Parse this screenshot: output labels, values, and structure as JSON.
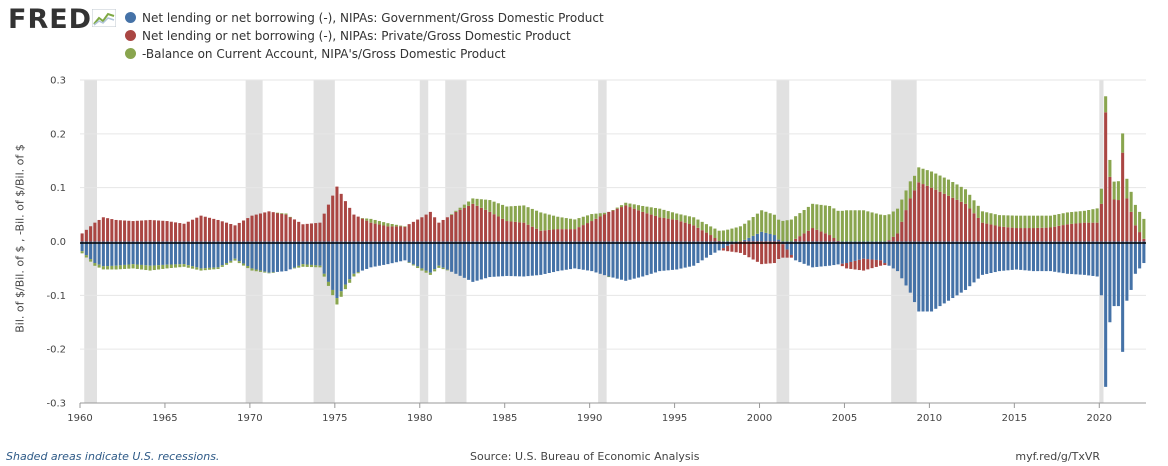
{
  "logo": {
    "text": "FRED"
  },
  "legend": [
    {
      "label": "Net lending or net borrowing (-), NIPAs: Government/Gross Domestic Product",
      "color": "#4572A7"
    },
    {
      "label": "Net lending or net borrowing (-), NIPAs: Private/Gross Domestic Product",
      "color": "#AA4643"
    },
    {
      "label": "-Balance on Current Account, NIPA's/Gross Domestic Product",
      "color": "#89A54E"
    }
  ],
  "footer": {
    "left": "Shaded areas indicate U.S. recessions.",
    "source": "Source: U.S. Bureau of Economic Analysis",
    "url": "myf.red/g/TxVR"
  },
  "chart_data": {
    "type": "bar",
    "stacked": true,
    "frequency": "quarterly",
    "ylabel": "Bil. of $/Bil. of $ , -Bil. of $/Bil. of $",
    "ylim": [
      -0.3,
      0.3
    ],
    "yticks": [
      -0.3,
      -0.2,
      -0.1,
      0.0,
      0.1,
      0.2,
      0.3
    ],
    "ytick_labels": [
      "-0.3",
      "-0.2",
      "-0.1",
      "0.0",
      "0.1",
      "0.2",
      "0.3"
    ],
    "xlim": [
      1960.0,
      2022.75
    ],
    "xticks": [
      1960,
      1965,
      1970,
      1975,
      1980,
      1985,
      1990,
      1995,
      2000,
      2005,
      2010,
      2015,
      2020
    ],
    "xtick_labels": [
      "1960",
      "1965",
      "1970",
      "1975",
      "1980",
      "1985",
      "1990",
      "1995",
      "2000",
      "2005",
      "2010",
      "2015",
      "2020"
    ],
    "recessions": [
      [
        1960.25,
        1961.0
      ],
      [
        1969.75,
        1970.75
      ],
      [
        1973.75,
        1975.0
      ],
      [
        1980.0,
        1980.5
      ],
      [
        1981.5,
        1982.75
      ],
      [
        1990.5,
        1991.0
      ],
      [
        2001.0,
        2001.75
      ],
      [
        2007.75,
        2009.25
      ],
      [
        2020.0,
        2020.25
      ]
    ],
    "series": [
      {
        "name": "Net lending or net borrowing (-), NIPAs: Government/Gross Domestic Product",
        "color": "#4572A7",
        "keyframes": [
          [
            1960.0,
            -0.018
          ],
          [
            1960.75,
            -0.04
          ],
          [
            1961.25,
            -0.046
          ],
          [
            1962.0,
            -0.045
          ],
          [
            1963.0,
            -0.042
          ],
          [
            1964.0,
            -0.045
          ],
          [
            1965.0,
            -0.043
          ],
          [
            1966.0,
            -0.042
          ],
          [
            1967.0,
            -0.05
          ],
          [
            1968.0,
            -0.048
          ],
          [
            1969.0,
            -0.032
          ],
          [
            1970.0,
            -0.05
          ],
          [
            1971.0,
            -0.058
          ],
          [
            1972.0,
            -0.055
          ],
          [
            1973.0,
            -0.042
          ],
          [
            1974.0,
            -0.045
          ],
          [
            1975.0,
            -0.105
          ],
          [
            1975.5,
            -0.08
          ],
          [
            1976.0,
            -0.06
          ],
          [
            1977.0,
            -0.048
          ],
          [
            1978.0,
            -0.042
          ],
          [
            1979.0,
            -0.035
          ],
          [
            1980.0,
            -0.05
          ],
          [
            1980.5,
            -0.058
          ],
          [
            1981.0,
            -0.045
          ],
          [
            1982.0,
            -0.06
          ],
          [
            1983.0,
            -0.075
          ],
          [
            1984.0,
            -0.066
          ],
          [
            1985.0,
            -0.064
          ],
          [
            1986.0,
            -0.065
          ],
          [
            1987.0,
            -0.062
          ],
          [
            1988.0,
            -0.055
          ],
          [
            1989.0,
            -0.05
          ],
          [
            1990.0,
            -0.055
          ],
          [
            1991.0,
            -0.065
          ],
          [
            1992.0,
            -0.073
          ],
          [
            1993.0,
            -0.065
          ],
          [
            1994.0,
            -0.055
          ],
          [
            1995.0,
            -0.052
          ],
          [
            1996.0,
            -0.045
          ],
          [
            1997.0,
            -0.025
          ],
          [
            1998.0,
            -0.008
          ],
          [
            1999.0,
            0.003
          ],
          [
            2000.0,
            0.018
          ],
          [
            2000.75,
            0.012
          ],
          [
            2001.25,
            -0.005
          ],
          [
            2002.0,
            -0.035
          ],
          [
            2003.0,
            -0.048
          ],
          [
            2004.0,
            -0.045
          ],
          [
            2005.0,
            -0.04
          ],
          [
            2006.0,
            -0.032
          ],
          [
            2007.0,
            -0.035
          ],
          [
            2008.0,
            -0.055
          ],
          [
            2008.75,
            -0.095
          ],
          [
            2009.25,
            -0.13
          ],
          [
            2010.0,
            -0.13
          ],
          [
            2011.0,
            -0.11
          ],
          [
            2012.0,
            -0.09
          ],
          [
            2013.0,
            -0.062
          ],
          [
            2014.0,
            -0.055
          ],
          [
            2015.0,
            -0.052
          ],
          [
            2016.0,
            -0.055
          ],
          [
            2017.0,
            -0.055
          ],
          [
            2018.0,
            -0.06
          ],
          [
            2019.0,
            -0.062
          ],
          [
            2019.75,
            -0.065
          ],
          [
            2020.0,
            -0.1
          ],
          [
            2020.25,
            -0.27
          ],
          [
            2020.5,
            -0.15
          ],
          [
            2020.75,
            -0.12
          ],
          [
            2021.0,
            -0.12
          ],
          [
            2021.25,
            -0.205
          ],
          [
            2021.5,
            -0.11
          ],
          [
            2021.75,
            -0.09
          ],
          [
            2022.0,
            -0.06
          ],
          [
            2022.5,
            -0.04
          ]
        ]
      },
      {
        "name": "Net lending or net borrowing (-), NIPAs: Private/Gross Domestic Product",
        "color": "#AA4643",
        "keyframes": [
          [
            1960.0,
            0.015
          ],
          [
            1960.75,
            0.035
          ],
          [
            1961.25,
            0.045
          ],
          [
            1962.0,
            0.04
          ],
          [
            1963.0,
            0.038
          ],
          [
            1964.0,
            0.04
          ],
          [
            1965.0,
            0.038
          ],
          [
            1966.0,
            0.033
          ],
          [
            1967.0,
            0.048
          ],
          [
            1968.0,
            0.04
          ],
          [
            1969.0,
            0.03
          ],
          [
            1970.0,
            0.048
          ],
          [
            1971.0,
            0.056
          ],
          [
            1972.0,
            0.05
          ],
          [
            1973.0,
            0.032
          ],
          [
            1974.0,
            0.035
          ],
          [
            1975.0,
            0.102
          ],
          [
            1975.5,
            0.075
          ],
          [
            1976.0,
            0.05
          ],
          [
            1977.0,
            0.035
          ],
          [
            1978.0,
            0.028
          ],
          [
            1979.0,
            0.028
          ],
          [
            1980.0,
            0.045
          ],
          [
            1980.5,
            0.055
          ],
          [
            1981.0,
            0.035
          ],
          [
            1982.0,
            0.055
          ],
          [
            1983.0,
            0.07
          ],
          [
            1984.0,
            0.055
          ],
          [
            1985.0,
            0.038
          ],
          [
            1986.0,
            0.035
          ],
          [
            1987.0,
            0.02
          ],
          [
            1988.0,
            0.023
          ],
          [
            1989.0,
            0.023
          ],
          [
            1990.0,
            0.038
          ],
          [
            1991.0,
            0.055
          ],
          [
            1992.0,
            0.067
          ],
          [
            1993.0,
            0.055
          ],
          [
            1994.0,
            0.045
          ],
          [
            1995.0,
            0.04
          ],
          [
            1996.0,
            0.03
          ],
          [
            1997.0,
            0.012
          ],
          [
            1998.0,
            -0.01
          ],
          [
            1999.0,
            -0.025
          ],
          [
            2000.0,
            -0.042
          ],
          [
            2000.75,
            -0.04
          ],
          [
            2001.25,
            -0.025
          ],
          [
            2002.0,
            0.005
          ],
          [
            2003.0,
            0.025
          ],
          [
            2004.0,
            0.012
          ],
          [
            2005.0,
            -0.01
          ],
          [
            2006.0,
            -0.022
          ],
          [
            2007.0,
            -0.01
          ],
          [
            2008.0,
            0.015
          ],
          [
            2008.75,
            0.08
          ],
          [
            2009.25,
            0.11
          ],
          [
            2010.0,
            0.1
          ],
          [
            2011.0,
            0.085
          ],
          [
            2012.0,
            0.07
          ],
          [
            2013.0,
            0.035
          ],
          [
            2014.0,
            0.028
          ],
          [
            2015.0,
            0.025
          ],
          [
            2016.0,
            0.025
          ],
          [
            2017.0,
            0.026
          ],
          [
            2018.0,
            0.032
          ],
          [
            2019.0,
            0.035
          ],
          [
            2019.75,
            0.035
          ],
          [
            2020.0,
            0.07
          ],
          [
            2020.25,
            0.24
          ],
          [
            2020.5,
            0.12
          ],
          [
            2020.75,
            0.078
          ],
          [
            2021.0,
            0.077
          ],
          [
            2021.25,
            0.165
          ],
          [
            2021.5,
            0.08
          ],
          [
            2021.75,
            0.055
          ],
          [
            2022.0,
            0.03
          ],
          [
            2022.5,
            0.005
          ]
        ]
      },
      {
        "name": "-Balance on Current Account, NIPA's/Gross Domestic Product",
        "color": "#89A54E",
        "keyframes": [
          [
            1960.0,
            -0.004
          ],
          [
            1962.0,
            -0.007
          ],
          [
            1964.0,
            -0.009
          ],
          [
            1966.0,
            -0.005
          ],
          [
            1968.0,
            -0.003
          ],
          [
            1970.0,
            -0.004
          ],
          [
            1972.0,
            0.002
          ],
          [
            1973.0,
            -0.005
          ],
          [
            1974.0,
            -0.003
          ],
          [
            1975.0,
            -0.012
          ],
          [
            1976.0,
            -0.005
          ],
          [
            1977.0,
            0.007
          ],
          [
            1978.0,
            0.006
          ],
          [
            1979.0,
            0.0
          ],
          [
            1980.0,
            -0.004
          ],
          [
            1981.0,
            -0.004
          ],
          [
            1982.0,
            0.002
          ],
          [
            1983.0,
            0.01
          ],
          [
            1984.0,
            0.022
          ],
          [
            1985.0,
            0.027
          ],
          [
            1986.0,
            0.032
          ],
          [
            1987.0,
            0.034
          ],
          [
            1988.0,
            0.023
          ],
          [
            1989.0,
            0.018
          ],
          [
            1990.0,
            0.013
          ],
          [
            1991.0,
            -0.001
          ],
          [
            1992.0,
            0.005
          ],
          [
            1993.0,
            0.011
          ],
          [
            1994.0,
            0.016
          ],
          [
            1995.0,
            0.012
          ],
          [
            1996.0,
            0.015
          ],
          [
            1997.0,
            0.016
          ],
          [
            1998.0,
            0.022
          ],
          [
            1999.0,
            0.03
          ],
          [
            2000.0,
            0.04
          ],
          [
            2001.0,
            0.037
          ],
          [
            2002.0,
            0.042
          ],
          [
            2003.0,
            0.045
          ],
          [
            2004.0,
            0.054
          ],
          [
            2005.0,
            0.058
          ],
          [
            2006.0,
            0.058
          ],
          [
            2007.0,
            0.05
          ],
          [
            2008.0,
            0.046
          ],
          [
            2009.0,
            0.027
          ],
          [
            2010.0,
            0.03
          ],
          [
            2011.0,
            0.03
          ],
          [
            2012.0,
            0.027
          ],
          [
            2013.0,
            0.021
          ],
          [
            2014.0,
            0.021
          ],
          [
            2015.0,
            0.023
          ],
          [
            2016.0,
            0.023
          ],
          [
            2017.0,
            0.022
          ],
          [
            2018.0,
            0.022
          ],
          [
            2019.0,
            0.022
          ],
          [
            2020.0,
            0.028
          ],
          [
            2021.0,
            0.035
          ],
          [
            2022.0,
            0.038
          ],
          [
            2022.5,
            0.037
          ]
        ]
      }
    ]
  }
}
